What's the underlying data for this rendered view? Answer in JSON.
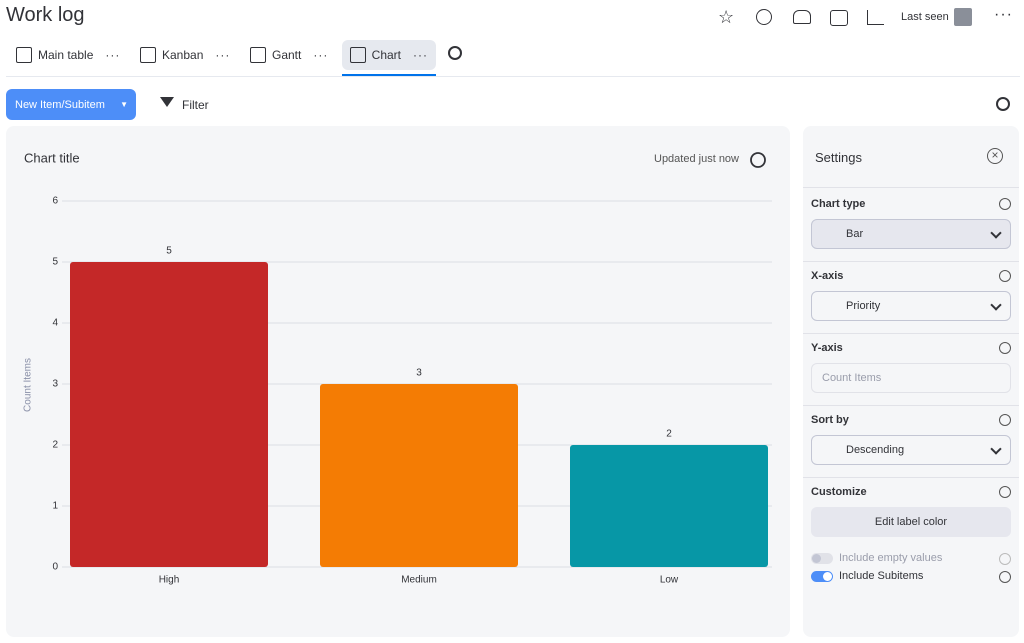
{
  "header": {
    "title": "Work log",
    "last_seen": "Last seen"
  },
  "tabs": [
    "Main table",
    "Kanban",
    "Gantt",
    "Chart"
  ],
  "toolbar": {
    "new_item": "New Item/Subitem",
    "filter": "Filter"
  },
  "chart_data": {
    "type": "bar",
    "title": "Chart title",
    "status": "Updated just now",
    "y_label": "Count Items",
    "categories": [
      "High",
      "Medium",
      "Low"
    ],
    "values": [
      5,
      3,
      2
    ],
    "colors": [
      "#c42828",
      "#f47c04",
      "#0797a6"
    ],
    "ylim": [
      0,
      6
    ],
    "yticks": [
      0,
      1,
      2,
      3,
      4,
      5,
      6
    ],
    "grid": true
  },
  "settings": {
    "title": "Settings",
    "chart_type": {
      "label": "Chart type",
      "value": "Bar"
    },
    "x_axis": {
      "label": "X-axis",
      "value": "Priority"
    },
    "y_axis": {
      "label": "Y-axis",
      "placeholder": "Count Items"
    },
    "sort_by": {
      "label": "Sort by",
      "value": "Descending"
    },
    "customize": {
      "label": "Customize",
      "button": "Edit label color"
    },
    "toggles": [
      {
        "label": "Include empty values",
        "on": false
      },
      {
        "label": "Include Subitems",
        "on": true
      }
    ]
  }
}
